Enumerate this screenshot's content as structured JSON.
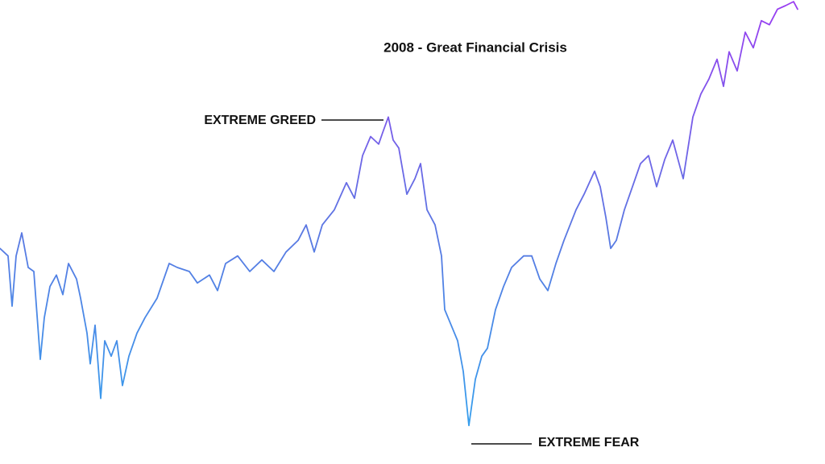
{
  "chart_data": {
    "type": "line",
    "title": "2008 - Great Financial Crisis",
    "annotations": [
      "EXTREME GREED",
      "EXTREME FEAR"
    ],
    "x": [
      0,
      10,
      15,
      20,
      27,
      35,
      42,
      50,
      55,
      62,
      70,
      78,
      85,
      95,
      100,
      108,
      112,
      118,
      125,
      130,
      138,
      145,
      152,
      160,
      170,
      180,
      195,
      210,
      220,
      235,
      245,
      260,
      270,
      280,
      295,
      310,
      325,
      340,
      355,
      370,
      380,
      390,
      400,
      415,
      430,
      440,
      450,
      460,
      470,
      475,
      482,
      488,
      495,
      505,
      515,
      522,
      530,
      540,
      548,
      552,
      560,
      568,
      575,
      582,
      590,
      598,
      605,
      615,
      625,
      635,
      650,
      660,
      670,
      680,
      690,
      700,
      715,
      725,
      738,
      745,
      752,
      758,
      765,
      775,
      785,
      795,
      805,
      815,
      825,
      835,
      848,
      860,
      870,
      880,
      890,
      898,
      905,
      915,
      925,
      935,
      945,
      955,
      965,
      975,
      985,
      990
    ],
    "values": [
      44.4,
      42.7,
      31.4,
      42.7,
      47.9,
      40.1,
      39.2,
      19.4,
      28.8,
      35.8,
      38.4,
      34.0,
      41.0,
      37.5,
      33.2,
      25.3,
      18.4,
      27.1,
      10.6,
      23.6,
      20.1,
      23.6,
      13.5,
      20.1,
      25.3,
      28.8,
      33.2,
      41.0,
      40.1,
      39.2,
      36.6,
      38.4,
      34.9,
      41.0,
      42.7,
      39.2,
      41.8,
      39.2,
      43.6,
      46.2,
      49.7,
      43.6,
      49.7,
      53.1,
      59.2,
      55.7,
      65.3,
      69.6,
      67.9,
      70.5,
      74.0,
      68.8,
      67.0,
      56.6,
      60.1,
      63.5,
      53.1,
      49.7,
      42.7,
      30.6,
      27.1,
      23.6,
      16.7,
      4.5,
      14.9,
      20.1,
      21.9,
      30.6,
      35.8,
      40.1,
      42.7,
      42.7,
      37.5,
      34.9,
      41.0,
      46.2,
      53.1,
      56.6,
      61.8,
      58.3,
      51.4,
      44.4,
      46.2,
      53.1,
      58.3,
      63.5,
      65.3,
      58.3,
      64.4,
      68.8,
      60.1,
      74.0,
      79.2,
      82.6,
      87.0,
      80.9,
      88.7,
      84.4,
      93.1,
      89.6,
      95.7,
      94.8,
      98.3,
      99.1,
      100,
      98.3
    ],
    "xlim": [
      0,
      1024
    ],
    "ylim": [
      0,
      100
    ],
    "gradient": [
      "#2fa6ef",
      "#5a78e2",
      "#9a3df1"
    ]
  }
}
